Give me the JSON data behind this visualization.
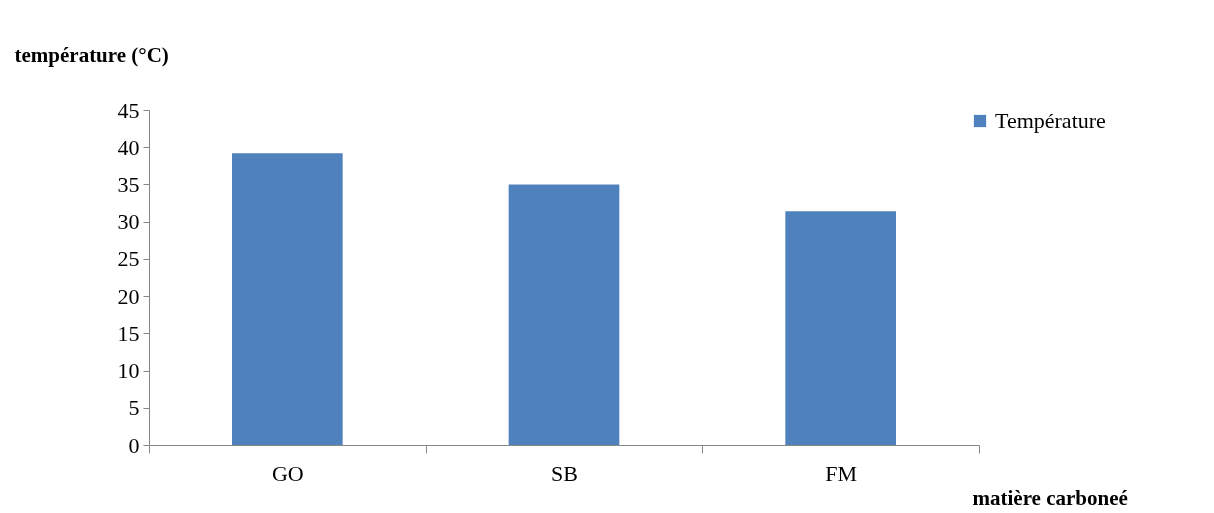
{
  "chart_data": {
    "type": "bar",
    "ylabel": "température (°C)",
    "xlabel": "matière carboneé",
    "categories": [
      "GO",
      "SB",
      "FM"
    ],
    "series": [
      {
        "name": "Température",
        "color": "#4f81bd",
        "values": [
          39.2,
          35.0,
          31.4
        ]
      }
    ],
    "ylim": [
      0,
      45
    ],
    "yticks": [
      0,
      5,
      10,
      15,
      20,
      25,
      30,
      35,
      40,
      45
    ],
    "grid": false,
    "legend": "right"
  }
}
